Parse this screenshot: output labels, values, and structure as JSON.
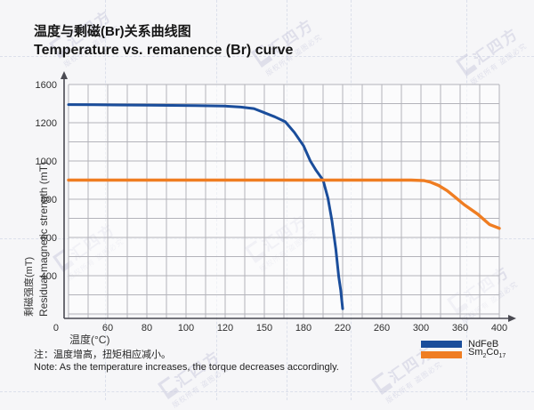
{
  "title_cn": "温度与剩磁(Br)关系曲线图",
  "title_en": "Temperature vs. remanence (Br) curve",
  "note_cn": "注：温度增高，扭矩相应减小。",
  "note_en": "Note: As the temperature increases, the torque decreases accordingly.",
  "watermark": {
    "brand": "汇四方",
    "sub": "版权所有 盗图必究"
  },
  "colors": {
    "ndfeb": "#1a4d9b",
    "sm2co17": "#ef7d22",
    "grid": "#b3b3ba",
    "axis": "#4a4a52",
    "tick_text": "#2e2e2e"
  },
  "chart_data": {
    "type": "line",
    "title": "Temperature vs. remanence (Br) curve",
    "title_cn": "温度与剩磁(Br)关系曲线图",
    "xlabel_cn": "温度(°C)",
    "ylabel_cn": "剩磁强度(mT)",
    "ylabel_en": "Residual magnetic strength (mT)",
    "origin_label": "0",
    "x_ticks": [
      0,
      60,
      80,
      100,
      120,
      150,
      180,
      220,
      260,
      300,
      360,
      400
    ],
    "y_ticks": [
      1600,
      1200,
      1000,
      800,
      600,
      400,
      0
    ],
    "grid": true,
    "legend_position": "bottom-right",
    "series": [
      {
        "name": "NdFeB",
        "color": "#1a4d9b",
        "points": [
          [
            0,
            1390
          ],
          [
            40,
            1388
          ],
          [
            80,
            1384
          ],
          [
            105,
            1380
          ],
          [
            120,
            1374
          ],
          [
            132,
            1364
          ],
          [
            142,
            1348
          ],
          [
            150,
            1305
          ],
          [
            158,
            1262
          ],
          [
            166,
            1210
          ],
          [
            173,
            1150
          ],
          [
            180,
            1080
          ],
          [
            187,
            1000
          ],
          [
            193,
            950
          ],
          [
            200,
            900
          ],
          [
            205,
            805
          ],
          [
            209,
            690
          ],
          [
            213,
            540
          ],
          [
            216,
            390
          ],
          [
            218,
            250
          ],
          [
            220,
            55
          ]
        ]
      },
      {
        "name": "Sm2Co17",
        "color": "#ef7d22",
        "points": [
          [
            0,
            900
          ],
          [
            80,
            900
          ],
          [
            160,
            900
          ],
          [
            240,
            900
          ],
          [
            290,
            900
          ],
          [
            305,
            897
          ],
          [
            315,
            889
          ],
          [
            327,
            872
          ],
          [
            340,
            845
          ],
          [
            352,
            812
          ],
          [
            364,
            772
          ],
          [
            378,
            722
          ],
          [
            390,
            668
          ],
          [
            400,
            648
          ]
        ]
      }
    ]
  }
}
